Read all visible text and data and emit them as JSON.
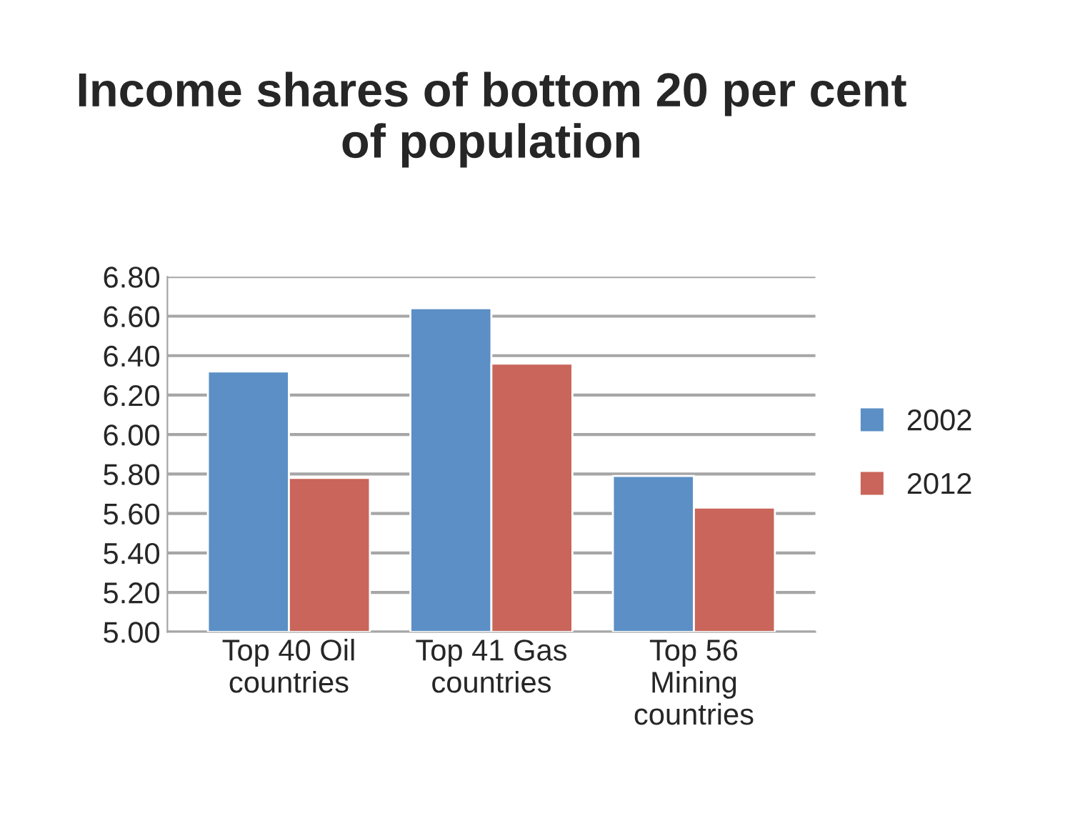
{
  "chart_data": {
    "type": "bar",
    "title": "Income shares of bottom 20 per cent\nof population",
    "categories": [
      "Top 40 Oil\ncountries",
      "Top 41 Gas\ncountries",
      "Top 56\nMining\ncountries"
    ],
    "series": [
      {
        "name": "2002",
        "color": "#5b8fc5",
        "values": [
          6.32,
          6.64,
          5.79
        ]
      },
      {
        "name": "2012",
        "color": "#c9655a",
        "values": [
          5.78,
          6.36,
          5.63
        ]
      }
    ],
    "ylim": [
      5.0,
      6.8
    ],
    "yticks": [
      {
        "value": 5.0,
        "label": "5.00"
      },
      {
        "value": 5.2,
        "label": "5.20"
      },
      {
        "value": 5.4,
        "label": "5.40"
      },
      {
        "value": 5.6,
        "label": "5.60"
      },
      {
        "value": 5.8,
        "label": "5.80"
      },
      {
        "value": 6.0,
        "label": "6.00"
      },
      {
        "value": 6.2,
        "label": "6.20"
      },
      {
        "value": 6.4,
        "label": "6.40"
      },
      {
        "value": 6.6,
        "label": "6.60"
      },
      {
        "value": 6.8,
        "label": "6.80"
      }
    ],
    "grid": "y",
    "legend": "right"
  }
}
